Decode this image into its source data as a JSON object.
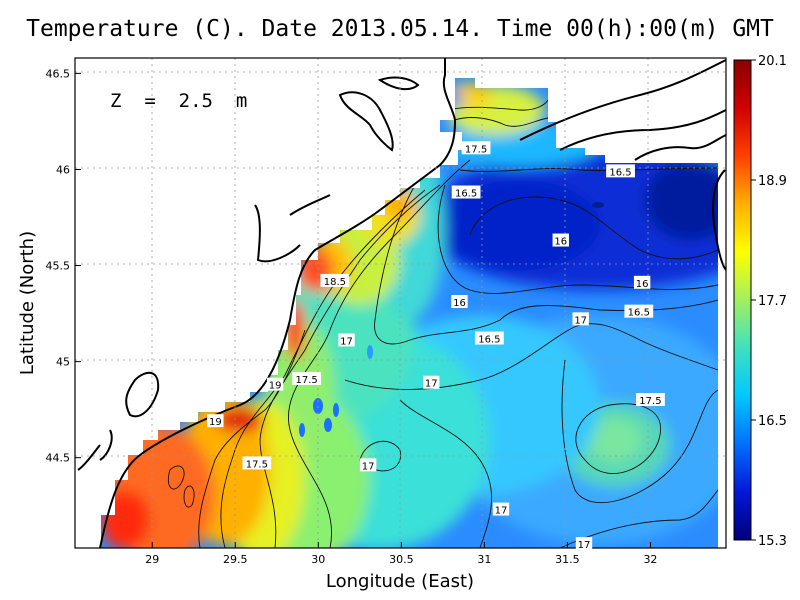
{
  "title": "Temperature (C). Date 2013.05.14. Time 00(h):00(m) GMT",
  "depth_label": "Z  =  2.5  m",
  "xlabel": "Longitude (East)",
  "ylabel": "Latitude (North)",
  "x_ticks": [
    "29",
    "29.5",
    "30",
    "30.5",
    "31",
    "31.5",
    "32"
  ],
  "y_ticks": [
    "46.5",
    "46",
    "45.5",
    "45",
    "44.5"
  ],
  "colorbar": {
    "ticks": [
      "20.1",
      "18.9",
      "17.7",
      "16.5",
      "15.3"
    ],
    "min": 15.3,
    "max": 20.1,
    "colors": [
      "#00007a",
      "#0018d8",
      "#0070ff",
      "#00c8ff",
      "#40e0c0",
      "#a0f060",
      "#ffff00",
      "#ffb000",
      "#ff4000",
      "#d00000",
      "#8a0000"
    ]
  },
  "contour_labels": [
    {
      "text": "17.5",
      "lon": 30.95,
      "lat": 46.11
    },
    {
      "text": "16.5",
      "lon": 31.82,
      "lat": 45.99
    },
    {
      "text": "16.5",
      "lon": 30.89,
      "lat": 45.88
    },
    {
      "text": "16",
      "lon": 31.46,
      "lat": 45.63
    },
    {
      "text": "18.5",
      "lon": 30.1,
      "lat": 45.42
    },
    {
      "text": "16",
      "lon": 31.95,
      "lat": 45.41
    },
    {
      "text": "16",
      "lon": 30.85,
      "lat": 45.31
    },
    {
      "text": "16.5",
      "lon": 31.93,
      "lat": 45.26
    },
    {
      "text": "17",
      "lon": 31.58,
      "lat": 45.22
    },
    {
      "text": "17",
      "lon": 30.17,
      "lat": 45.11
    },
    {
      "text": "16.5",
      "lon": 31.03,
      "lat": 45.12
    },
    {
      "text": "17.5",
      "lon": 29.93,
      "lat": 44.91
    },
    {
      "text": "19",
      "lon": 29.74,
      "lat": 44.88
    },
    {
      "text": "17",
      "lon": 30.68,
      "lat": 44.89
    },
    {
      "text": "17.5",
      "lon": 32.0,
      "lat": 44.8
    },
    {
      "text": "19",
      "lon": 29.38,
      "lat": 44.69
    },
    {
      "text": "17.5",
      "lon": 29.63,
      "lat": 44.47
    },
    {
      "text": "17",
      "lon": 30.3,
      "lat": 44.46
    },
    {
      "text": "17",
      "lon": 31.1,
      "lat": 44.23
    },
    {
      "text": "17",
      "lon": 31.6,
      "lat": 44.05
    }
  ]
}
